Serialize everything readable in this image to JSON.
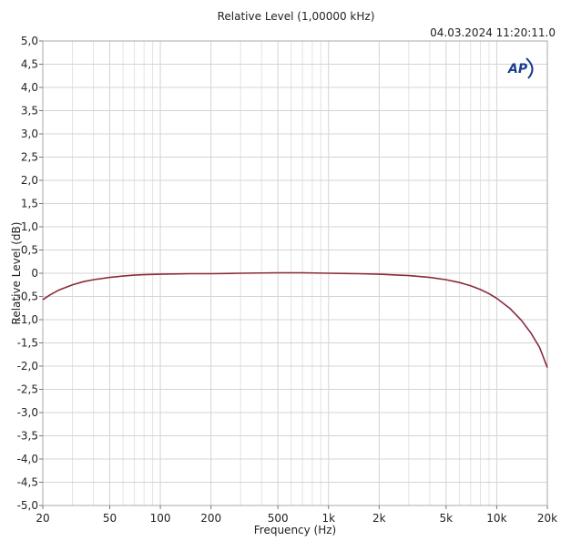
{
  "chart_data": {
    "type": "line",
    "title": "Relative Level (1,00000 kHz)",
    "timestamp": "04.03.2024 11:20:11.0",
    "xlabel": "Frequency (Hz)",
    "ylabel": "Relative Level (dB)",
    "x_scale": "log",
    "xlim": [
      20,
      20000
    ],
    "ylim": [
      -5.0,
      5.0
    ],
    "grid": true,
    "x_ticks": [
      {
        "value": 20,
        "label": "20"
      },
      {
        "value": 50,
        "label": "50"
      },
      {
        "value": 100,
        "label": "100"
      },
      {
        "value": 200,
        "label": "200"
      },
      {
        "value": 500,
        "label": "500"
      },
      {
        "value": 1000,
        "label": "1k"
      },
      {
        "value": 2000,
        "label": "2k"
      },
      {
        "value": 5000,
        "label": "5k"
      },
      {
        "value": 10000,
        "label": "10k"
      },
      {
        "value": 20000,
        "label": "20k"
      }
    ],
    "y_ticks": [
      {
        "value": 5.0,
        "label": "5,0"
      },
      {
        "value": 4.5,
        "label": "4,5"
      },
      {
        "value": 4.0,
        "label": "4,0"
      },
      {
        "value": 3.5,
        "label": "3,5"
      },
      {
        "value": 3.0,
        "label": "3,0"
      },
      {
        "value": 2.5,
        "label": "2,5"
      },
      {
        "value": 2.0,
        "label": "2,0"
      },
      {
        "value": 1.5,
        "label": "1,5"
      },
      {
        "value": 1.0,
        "label": "1,0"
      },
      {
        "value": 0.5,
        "label": "0,5"
      },
      {
        "value": 0,
        "label": "0"
      },
      {
        "value": -0.5,
        "label": "-0,5"
      },
      {
        "value": -1.0,
        "label": "-1,0"
      },
      {
        "value": -1.5,
        "label": "-1,5"
      },
      {
        "value": -2.0,
        "label": "-2,0"
      },
      {
        "value": -2.5,
        "label": "-2,5"
      },
      {
        "value": -3.0,
        "label": "-3,0"
      },
      {
        "value": -3.5,
        "label": "-3,5"
      },
      {
        "value": -4.0,
        "label": "-4,0"
      },
      {
        "value": -4.5,
        "label": "-4,5"
      },
      {
        "value": -5.0,
        "label": "-5,0"
      }
    ],
    "series": [
      {
        "color": "#8b2b3a",
        "points": [
          [
            20,
            -0.57
          ],
          [
            22,
            -0.47
          ],
          [
            25,
            -0.36
          ],
          [
            30,
            -0.25
          ],
          [
            35,
            -0.18
          ],
          [
            40,
            -0.14
          ],
          [
            50,
            -0.09
          ],
          [
            60,
            -0.06
          ],
          [
            70,
            -0.04
          ],
          [
            80,
            -0.03
          ],
          [
            100,
            -0.02
          ],
          [
            150,
            -0.01
          ],
          [
            200,
            -0.01
          ],
          [
            300,
            0.0
          ],
          [
            500,
            0.01
          ],
          [
            700,
            0.01
          ],
          [
            1000,
            0.0
          ],
          [
            1500,
            -0.01
          ],
          [
            2000,
            -0.02
          ],
          [
            3000,
            -0.05
          ],
          [
            4000,
            -0.09
          ],
          [
            5000,
            -0.14
          ],
          [
            6000,
            -0.2
          ],
          [
            7000,
            -0.27
          ],
          [
            8000,
            -0.35
          ],
          [
            9000,
            -0.44
          ],
          [
            10000,
            -0.54
          ],
          [
            12000,
            -0.76
          ],
          [
            14000,
            -1.01
          ],
          [
            16000,
            -1.29
          ],
          [
            18000,
            -1.6
          ],
          [
            20000,
            -2.03
          ]
        ]
      }
    ]
  },
  "logo": {
    "text": "AP",
    "color": "#1a3d8f"
  }
}
